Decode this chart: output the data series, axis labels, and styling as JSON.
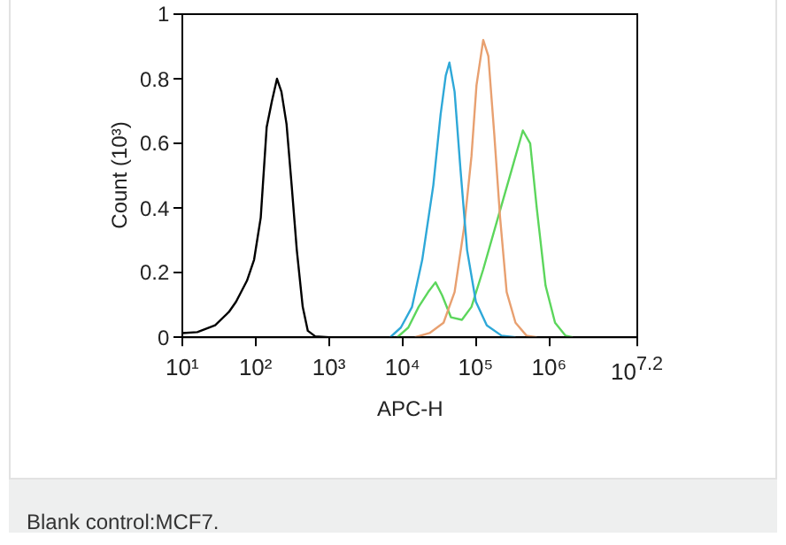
{
  "chart_data": {
    "type": "line",
    "xlabel": "APC-H",
    "ylabel": "Count (10³)",
    "log": "x",
    "grid": false,
    "legend": false,
    "marker": "none",
    "line_style": "solid",
    "xlim": [
      10,
      15848932
    ],
    "xticks": [
      {
        "value": 10,
        "label": "10¹"
      },
      {
        "value": 100,
        "label": "10²"
      },
      {
        "value": 1000,
        "label": "10³"
      },
      {
        "value": 10000,
        "label": "10⁴"
      },
      {
        "value": 100000,
        "label": "10⁵"
      },
      {
        "value": 1000000,
        "label": "10⁶"
      },
      {
        "value": 15848932,
        "label": "10$^{7.2}$"
      }
    ],
    "ylim": [
      0,
      1
    ],
    "yticks": [
      0,
      0.2,
      0.4,
      0.6,
      0.8,
      1
    ],
    "annotations": [
      "Blank control:MCF7."
    ],
    "series": [
      {
        "color": "#000000",
        "x": [
          10,
          16,
          28,
          43,
          54,
          76,
          95,
          117,
          141,
          166,
          195,
          224,
          263,
          309,
          363,
          437,
          513,
          646,
          1000
        ],
        "values": [
          0.013,
          0.016,
          0.037,
          0.078,
          0.11,
          0.175,
          0.24,
          0.37,
          0.65,
          0.73,
          0.8,
          0.76,
          0.66,
          0.47,
          0.27,
          0.094,
          0.02,
          0.003,
          0
        ]
      },
      {
        "color": "#2ea8d8",
        "x": [
          6800,
          9500,
          13500,
          18600,
          26300,
          33100,
          38900,
          43600,
          51300,
          61700,
          75900,
          100000,
          141000,
          224000,
          347000
        ],
        "values": [
          0,
          0.03,
          0.094,
          0.24,
          0.47,
          0.69,
          0.81,
          0.85,
          0.76,
          0.52,
          0.27,
          0.11,
          0.037,
          0.005,
          0
        ]
      },
      {
        "color": "#e8a070",
        "x": [
          14800,
          23400,
          36300,
          51300,
          69200,
          87100,
          102000,
          126000,
          148000,
          178000,
          214000,
          263000,
          347000,
          490000,
          676000
        ],
        "values": [
          0,
          0.013,
          0.045,
          0.14,
          0.34,
          0.56,
          0.78,
          0.92,
          0.87,
          0.63,
          0.37,
          0.14,
          0.045,
          0.005,
          0
        ]
      },
      {
        "color": "#5cd65c",
        "x": [
          8500,
          12000,
          16600,
          22400,
          28200,
          34700,
          45700,
          64600,
          87100,
          126000,
          200000,
          309000,
          437000,
          550000,
          676000,
          891000,
          1200000,
          1660000,
          2090000
        ],
        "values": [
          0,
          0.03,
          0.094,
          0.14,
          0.17,
          0.13,
          0.062,
          0.054,
          0.094,
          0.21,
          0.37,
          0.52,
          0.64,
          0.6,
          0.4,
          0.16,
          0.045,
          0.005,
          0
        ]
      }
    ]
  }
}
